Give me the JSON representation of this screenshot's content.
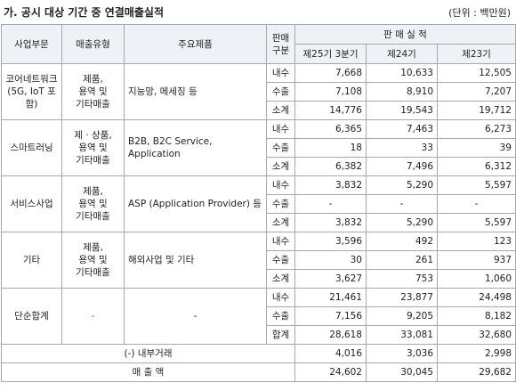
{
  "header": {
    "title": "가. 공시 대상 기간 중 연결매출실적",
    "unit": "(단위 : 백만원)"
  },
  "table": {
    "columns": {
      "segment": "사업부문",
      "sales_type": "매출유형",
      "product": "주요제품",
      "sales_class": "판매\n구분",
      "performance": "판 매 실 적",
      "periods": [
        "제25기 3분기",
        "제24기",
        "제23기"
      ]
    },
    "groups": [
      {
        "segment": "코어네트워크\n(5G, IoT 포함)",
        "sales_type": "제품,\n용역 및\n기타매출",
        "product": "지능망, 메세징 등",
        "rows": [
          {
            "type": "내수",
            "values": [
              "7,668",
              "10,633",
              "12,505"
            ]
          },
          {
            "type": "수출",
            "values": [
              "7,108",
              "8,910",
              "7,207"
            ]
          },
          {
            "type": "소계",
            "values": [
              "14,776",
              "19,543",
              "19,712"
            ]
          }
        ]
      },
      {
        "segment": "스마트러닝",
        "sales_type": "제 · 상품,\n용역 및\n기타매출",
        "product": "B2B, B2C Service, Application",
        "rows": [
          {
            "type": "내수",
            "values": [
              "6,365",
              "7,463",
              "6,273"
            ]
          },
          {
            "type": "수출",
            "values": [
              "18",
              "33",
              "39"
            ]
          },
          {
            "type": "소계",
            "values": [
              "6,382",
              "7,496",
              "6,312"
            ]
          }
        ]
      },
      {
        "segment": "서비스사업",
        "sales_type": "제품,\n용역 및\n기타매출",
        "product": "ASP (Application Provider) 등",
        "rows": [
          {
            "type": "내수",
            "values": [
              "3,832",
              "5,290",
              "5,597"
            ]
          },
          {
            "type": "수출",
            "values": [
              "-",
              "-",
              "-"
            ]
          },
          {
            "type": "소계",
            "values": [
              "3,832",
              "5,290",
              "5,597"
            ]
          }
        ]
      },
      {
        "segment": "기타",
        "sales_type": "제품,\n용역 및\n기타매출",
        "product": "해외사업 및 기타",
        "rows": [
          {
            "type": "내수",
            "values": [
              "3,596",
              "492",
              "123"
            ]
          },
          {
            "type": "수출",
            "values": [
              "30",
              "261",
              "937"
            ]
          },
          {
            "type": "소계",
            "values": [
              "3,627",
              "753",
              "1,060"
            ]
          }
        ]
      },
      {
        "segment": "단순합계",
        "sales_type": "-",
        "product": "-",
        "rows": [
          {
            "type": "내수",
            "values": [
              "21,461",
              "23,877",
              "24,498"
            ]
          },
          {
            "type": "수출",
            "values": [
              "7,156",
              "9,205",
              "8,182"
            ]
          },
          {
            "type": "합계",
            "values": [
              "28,618",
              "33,081",
              "32,680"
            ]
          }
        ]
      }
    ],
    "totals": [
      {
        "label": "(-) 내부거래",
        "values": [
          "4,016",
          "3,036",
          "2,998"
        ]
      },
      {
        "label": "매 출 액",
        "values": [
          "24,602",
          "30,045",
          "29,682"
        ]
      }
    ]
  }
}
